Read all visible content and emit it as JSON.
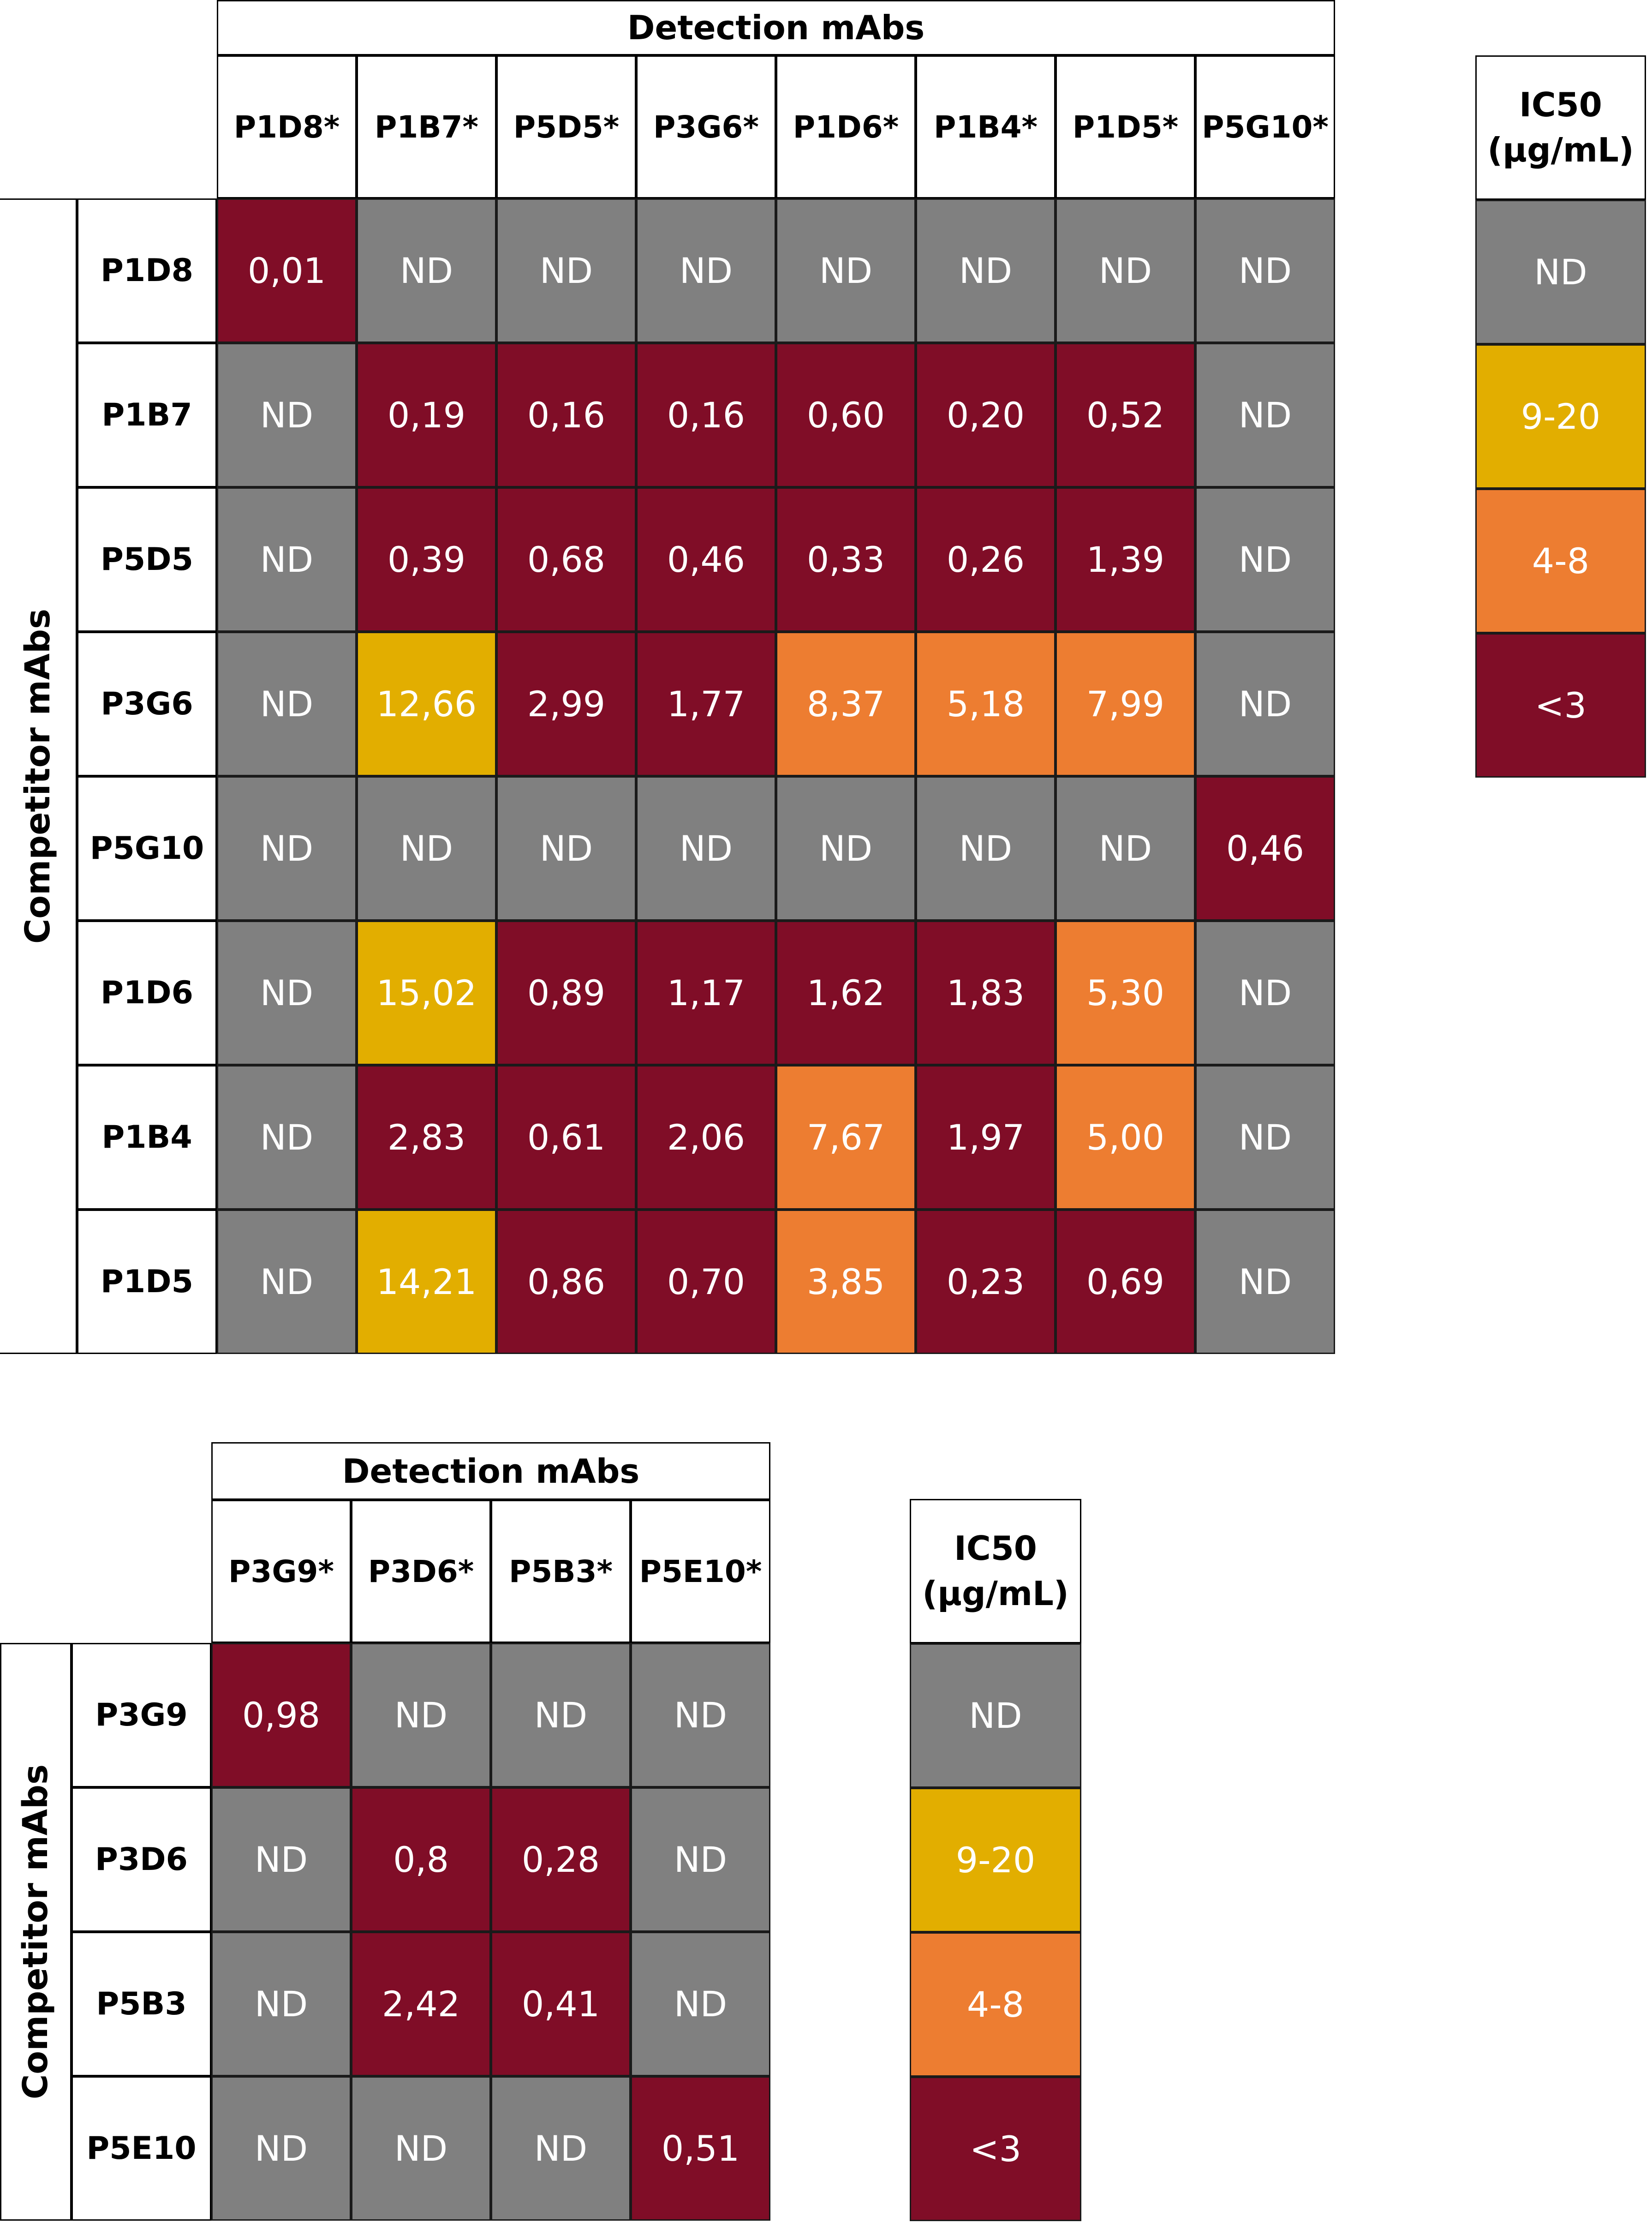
{
  "colors": {
    "nd": "#808080",
    "high": "#E2AE00",
    "mid": "#ED7D31",
    "low": "#800D27"
  },
  "chart_data": [
    {
      "type": "heatmap",
      "col_header_title": "Detection mAbs",
      "row_header_title": "Competitor mAbs",
      "columns": [
        "P1D8*",
        "P1B7*",
        "P5D5*",
        "P3G6*",
        "P1D6*",
        "P1B4*",
        "P1D5*",
        "P5G10*"
      ],
      "rows": [
        "P1D8",
        "P1B7",
        "P5D5",
        "P3G6",
        "P5G10",
        "P1D6",
        "P1B4",
        "P1D5"
      ],
      "values": [
        [
          "0,01",
          "ND",
          "ND",
          "ND",
          "ND",
          "ND",
          "ND",
          "ND"
        ],
        [
          "ND",
          "0,19",
          "0,16",
          "0,16",
          "0,60",
          "0,20",
          "0,52",
          "ND"
        ],
        [
          "ND",
          "0,39",
          "0,68",
          "0,46",
          "0,33",
          "0,26",
          "1,39",
          "ND"
        ],
        [
          "ND",
          "12,66",
          "2,99",
          "1,77",
          "8,37",
          "5,18",
          "7,99",
          "ND"
        ],
        [
          "ND",
          "ND",
          "ND",
          "ND",
          "ND",
          "ND",
          "ND",
          "0,46"
        ],
        [
          "ND",
          "15,02",
          "0,89",
          "1,17",
          "1,62",
          "1,83",
          "5,30",
          "ND"
        ],
        [
          "ND",
          "2,83",
          "0,61",
          "2,06",
          "7,67",
          "1,97",
          "5,00",
          "ND"
        ],
        [
          "ND",
          "14,21",
          "0,86",
          "0,70",
          "3,85",
          "0,23",
          "0,69",
          "ND"
        ]
      ],
      "legend": {
        "title_line1": "IC50",
        "title_line2": "(µg/mL)",
        "entries": [
          {
            "label": "ND",
            "color": "#808080"
          },
          {
            "label": "9-20",
            "color": "#E2AE00"
          },
          {
            "label": "4-8",
            "color": "#ED7D31"
          },
          {
            "label": "<3",
            "color": "#800D27"
          }
        ]
      }
    },
    {
      "type": "heatmap",
      "col_header_title": "Detection mAbs",
      "row_header_title": "Competitor mAbs",
      "columns": [
        "P3G9*",
        "P3D6*",
        "P5B3*",
        "P5E10*"
      ],
      "rows": [
        "P3G9",
        "P3D6",
        "P5B3",
        "P5E10"
      ],
      "values": [
        [
          "0,98",
          "ND",
          "ND",
          "ND"
        ],
        [
          "ND",
          "0,8",
          "0,28",
          "ND"
        ],
        [
          "ND",
          "2,42",
          "0,41",
          "ND"
        ],
        [
          "ND",
          "ND",
          "ND",
          "0,51"
        ]
      ],
      "legend": {
        "title_line1": "IC50",
        "title_line2": "(µg/mL)",
        "entries": [
          {
            "label": "ND",
            "color": "#808080"
          },
          {
            "label": "9-20",
            "color": "#E2AE00"
          },
          {
            "label": "4-8",
            "color": "#ED7D31"
          },
          {
            "label": "<3",
            "color": "#800D27"
          }
        ]
      }
    }
  ]
}
